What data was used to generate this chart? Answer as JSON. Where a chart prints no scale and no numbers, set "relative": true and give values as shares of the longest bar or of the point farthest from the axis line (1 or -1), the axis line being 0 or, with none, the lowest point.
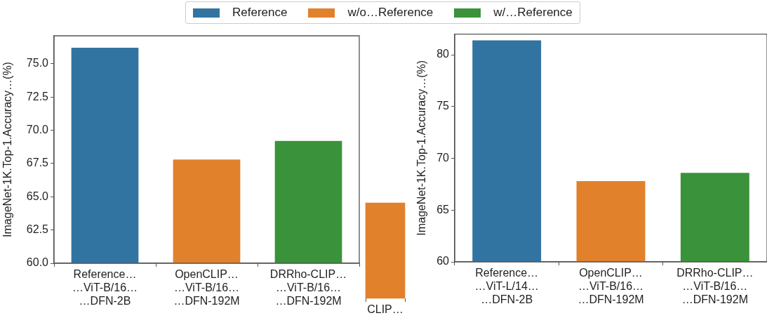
{
  "chart_data": [
    {
      "type": "bar",
      "ylabel": "ImageNet-1K.Top-1.Accuracy…(%)",
      "categories": [
        "Reference…\n…ViT-B/16…\n…DFN-2B",
        "OpenCLIP…\n…ViT-B/16…\n…DFN-192M",
        "DRRho-CLIP…\n…ViT-B/16…\n…DFN-192M"
      ],
      "series": [
        {
          "name": "Reference",
          "color": "#3274a1",
          "values": [
            76.2,
            null,
            null
          ]
        },
        {
          "name": "w/o…Reference",
          "color": "#e1812c",
          "values": [
            null,
            67.8,
            null
          ]
        },
        {
          "name": "w/…Reference",
          "color": "#3a923a",
          "values": [
            null,
            null,
            69.2
          ]
        }
      ],
      "ylim": [
        60,
        77.1
      ],
      "yticks": [
        {
          "value": 60,
          "label": "60.0"
        },
        {
          "value": 62.5,
          "label": "62.5"
        },
        {
          "value": 65,
          "label": "65.0"
        },
        {
          "value": 67.5,
          "label": "67.5"
        },
        {
          "value": 70,
          "label": "70.0"
        },
        {
          "value": 72.5,
          "label": "72.5"
        },
        {
          "value": 75,
          "label": "75.0"
        }
      ],
      "legend": "top",
      "grid": false
    },
    {
      "type": "bar",
      "ylabel": "ImageNet-1K.Top-1.Accuracy…(%)",
      "categories": [
        "Reference…\n…ViT-L/14…\n…DFN-2B",
        "OpenCLIP…\n…ViT-B/16…\n…DFN-192M",
        "DRRho-CLIP…\n…ViT-B/16…\n…DFN-192M"
      ],
      "series": [
        {
          "color": "#3274a1",
          "values": [
            81.4,
            null,
            null
          ]
        },
        {
          "color": "#e1812c",
          "values": [
            null,
            67.8,
            null
          ]
        },
        {
          "color": "#3a923a",
          "values": [
            null,
            null,
            68.6
          ]
        }
      ],
      "ylim": [
        60,
        82
      ],
      "yticks": [
        60,
        65,
        70,
        75,
        80
      ],
      "grid": false
    },
    {
      "type": "bar",
      "relative": true,
      "categories": [
        "CLIP…"
      ],
      "values": [
        1
      ],
      "color": "#e1812c"
    }
  ]
}
